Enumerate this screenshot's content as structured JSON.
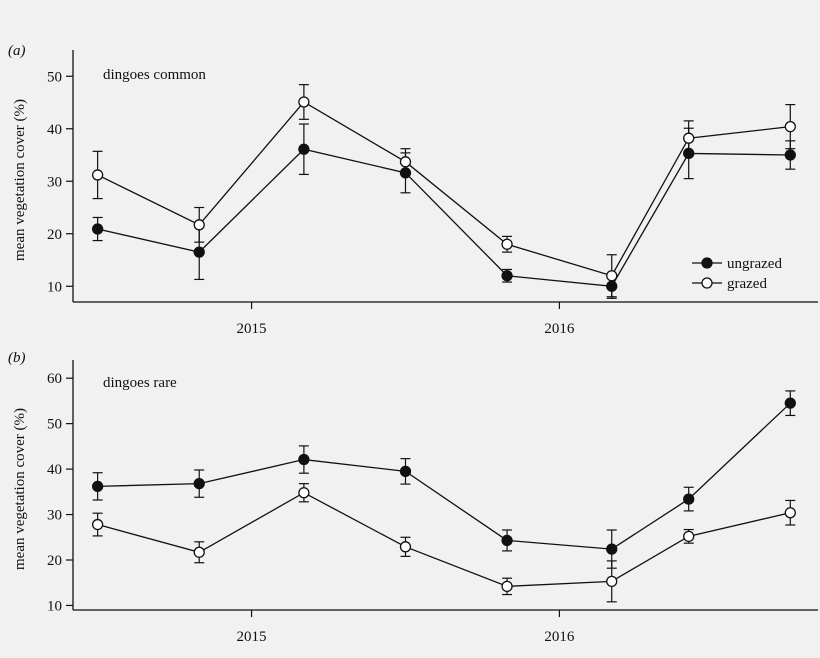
{
  "colors": {
    "background": "#f1f1f1",
    "ink": "#111111",
    "open_marker_fill": "#ffffff"
  },
  "legend": {
    "entries": [
      {
        "label": "ungrazed",
        "marker": "filled-circle"
      },
      {
        "label": "grazed",
        "marker": "open-circle"
      }
    ],
    "placement": "bottom-right of panel (a)"
  },
  "chart_data": [
    {
      "type": "line",
      "panel": "(a)",
      "title": "dingoes common",
      "ylabel": "mean vegetation cover (%)",
      "xlabel": "",
      "ylim": [
        7,
        55
      ],
      "xlim": [
        2014.42,
        2016.84
      ],
      "yticks": [
        10,
        20,
        30,
        40,
        50
      ],
      "xticks": [
        {
          "value": 2015.0,
          "label": "2015"
        },
        {
          "value": 2016.0,
          "label": "2016"
        }
      ],
      "grid": false,
      "error_bars": true,
      "x": [
        2014.5,
        2014.83,
        2015.17,
        2015.5,
        2015.83,
        2016.17,
        2016.42,
        2016.75
      ],
      "series": [
        {
          "name": "ungrazed",
          "marker": "filled",
          "values": [
            20.9,
            16.5,
            36.1,
            31.6,
            12.0,
            10.0,
            35.3,
            35.0
          ],
          "errors": [
            2.2,
            5.2,
            4.8,
            3.8,
            1.2,
            2.3,
            4.8,
            2.7
          ]
        },
        {
          "name": "grazed",
          "marker": "open",
          "values": [
            31.2,
            21.7,
            45.1,
            33.7,
            18.0,
            12.0,
            38.2,
            40.4
          ],
          "errors": [
            4.5,
            3.3,
            3.3,
            2.5,
            1.5,
            4.0,
            3.3,
            4.2
          ]
        }
      ]
    },
    {
      "type": "line",
      "panel": "(b)",
      "title": "dingoes rare",
      "ylabel": "mean vegetation cover (%)",
      "xlabel": "",
      "ylim": [
        9,
        64
      ],
      "xlim": [
        2014.42,
        2016.84
      ],
      "yticks": [
        10,
        20,
        30,
        40,
        50,
        60
      ],
      "xticks": [
        {
          "value": 2015.0,
          "label": "2015"
        },
        {
          "value": 2016.0,
          "label": "2016"
        }
      ],
      "grid": false,
      "error_bars": true,
      "x": [
        2014.5,
        2014.83,
        2015.17,
        2015.5,
        2015.83,
        2016.17,
        2016.42,
        2016.75
      ],
      "series": [
        {
          "name": "ungrazed",
          "marker": "filled",
          "values": [
            36.2,
            36.8,
            42.1,
            39.5,
            24.3,
            22.4,
            33.4,
            54.5
          ],
          "errors": [
            3.0,
            3.0,
            3.0,
            2.8,
            2.3,
            4.2,
            2.6,
            2.7
          ]
        },
        {
          "name": "grazed",
          "marker": "open",
          "values": [
            27.8,
            21.7,
            34.8,
            22.9,
            14.2,
            15.3,
            25.2,
            30.4
          ],
          "errors": [
            2.5,
            2.3,
            2.0,
            2.1,
            1.8,
            4.5,
            1.5,
            2.7
          ]
        }
      ]
    }
  ]
}
